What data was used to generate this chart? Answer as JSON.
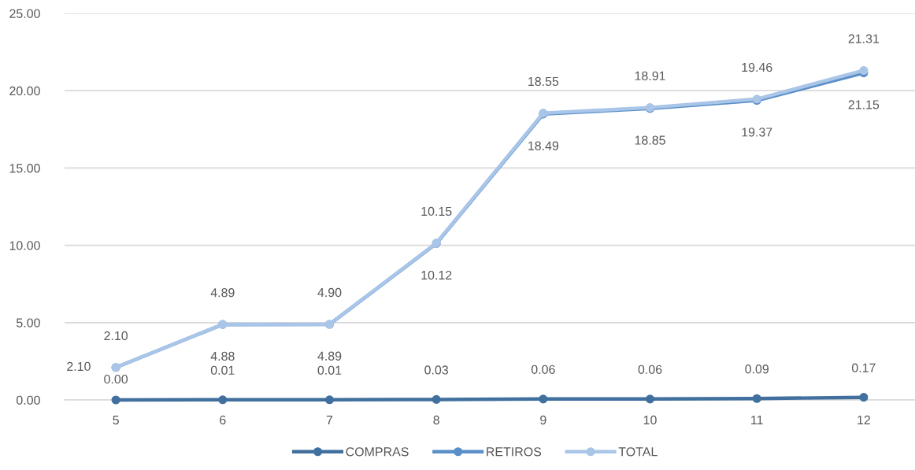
{
  "chart_data": {
    "type": "line",
    "categories": [
      "5",
      "6",
      "7",
      "8",
      "9",
      "10",
      "11",
      "12"
    ],
    "series": [
      {
        "name": "COMPRAS",
        "color": "#41709f",
        "values": [
          0.0,
          0.01,
          0.01,
          0.03,
          0.06,
          0.06,
          0.09,
          0.17
        ],
        "value_labels": [
          "0.00",
          "0.01",
          "0.01",
          "0.03",
          "0.06",
          "0.06",
          "0.09",
          "0.17"
        ]
      },
      {
        "name": "RETIROS",
        "color": "#5a8fc8",
        "values": [
          2.1,
          4.88,
          4.89,
          10.12,
          18.49,
          18.85,
          19.37,
          21.15
        ],
        "value_labels": [
          "2.10",
          "4.88",
          "4.89",
          "10.12",
          "18.49",
          "18.85",
          "19.37",
          "21.15"
        ]
      },
      {
        "name": "TOTAL",
        "color": "#a9c5e8",
        "values": [
          2.1,
          4.89,
          4.9,
          10.15,
          18.55,
          18.91,
          19.46,
          21.31
        ],
        "value_labels": [
          "2.10",
          "4.89",
          "4.90",
          "10.15",
          "18.55",
          "18.91",
          "19.46",
          "21.31"
        ]
      }
    ],
    "ylim": [
      0,
      25
    ],
    "yticks": [
      {
        "value": 0,
        "label": "0.00"
      },
      {
        "value": 5,
        "label": "5.00"
      },
      {
        "value": 10,
        "label": "10.00"
      },
      {
        "value": 15,
        "label": "15.00"
      },
      {
        "value": 20,
        "label": "20.00"
      },
      {
        "value": 25,
        "label": "25.00"
      }
    ],
    "grid": "y",
    "legend": "bottom",
    "marker": "circle",
    "line_style": "solid"
  }
}
